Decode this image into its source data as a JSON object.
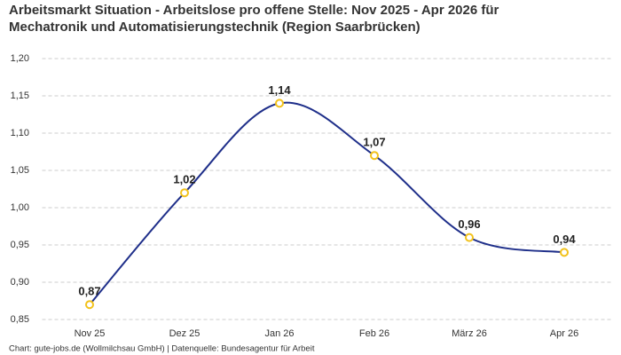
{
  "chart_data": {
    "type": "line",
    "title": "Arbeitsmarkt Situation - Arbeitslose pro offene Stelle: Nov 2025 - Apr 2026 für Mechatronik und Automatisierungstechnik (Region Saarbrücken)",
    "categories": [
      "Nov 25",
      "Dez 25",
      "Jan 26",
      "Feb 26",
      "März 26",
      "Apr 26"
    ],
    "values": [
      0.87,
      1.02,
      1.14,
      1.07,
      0.96,
      0.94
    ],
    "value_labels": [
      "0,87",
      "1,02",
      "1,14",
      "1,07",
      "0,96",
      "0,94"
    ],
    "color": "#1f2f8a",
    "marker_color": "#f2c21b",
    "ylim": [
      0.85,
      1.2
    ],
    "yticks": [
      {
        "value": 0.85,
        "label": "0,85"
      },
      {
        "value": 0.9,
        "label": "0,90"
      },
      {
        "value": 0.95,
        "label": "0,95"
      },
      {
        "value": 1.0,
        "label": "1,00"
      },
      {
        "value": 1.05,
        "label": "1,05"
      },
      {
        "value": 1.1,
        "label": "1,10"
      },
      {
        "value": 1.15,
        "label": "1,15"
      },
      {
        "value": 1.2,
        "label": "1,20"
      }
    ],
    "grid": true,
    "source": "Chart: gute-jobs.de (Wollmilchsau GmbH) | Datenquelle: Bundesagentur für Arbeit"
  }
}
